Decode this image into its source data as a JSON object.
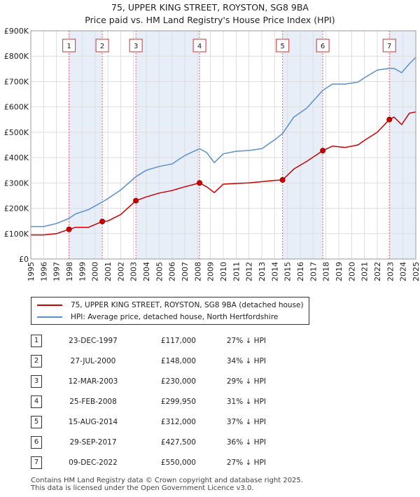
{
  "title": "75, UPPER KING STREET, ROYSTON, SG8 9BA",
  "subtitle": "Price paid vs. HM Land Registry's House Price Index (HPI)",
  "legend": [
    {
      "label": "75, UPPER KING STREET, ROYSTON, SG8 9BA (detached house)",
      "color": "#cc0000"
    },
    {
      "label": "HPI: Average price, detached house, North Hertfordshire",
      "color": "#5b8fd0"
    }
  ],
  "sales": [
    {
      "num": "1",
      "date": "23-DEC-1997",
      "price": "£117,000",
      "hpi": "27% ↓ HPI"
    },
    {
      "num": "2",
      "date": "27-JUL-2000",
      "price": "£148,000",
      "hpi": "34% ↓ HPI"
    },
    {
      "num": "3",
      "date": "12-MAR-2003",
      "price": "£230,000",
      "hpi": "29% ↓ HPI"
    },
    {
      "num": "4",
      "date": "25-FEB-2008",
      "price": "£299,950",
      "hpi": "31% ↓ HPI"
    },
    {
      "num": "5",
      "date": "15-AUG-2014",
      "price": "£312,000",
      "hpi": "37% ↓ HPI"
    },
    {
      "num": "6",
      "date": "29-SEP-2017",
      "price": "£427,500",
      "hpi": "36% ↓ HPI"
    },
    {
      "num": "7",
      "date": "09-DEC-2022",
      "price": "£550,000",
      "hpi": "27% ↓ HPI"
    }
  ],
  "footer": {
    "line1": "Contains HM Land Registry data © Crown copyright and database right 2025.",
    "line2": "This data is licensed under the Open Government Licence v3.0."
  },
  "chart_data": {
    "type": "line",
    "xlim": [
      1995,
      2025
    ],
    "ylim": [
      0,
      900000
    ],
    "y_ticks": [
      {
        "value": 0,
        "label": "£0"
      },
      {
        "value": 100000,
        "label": "£100K"
      },
      {
        "value": 200000,
        "label": "£200K"
      },
      {
        "value": 300000,
        "label": "£300K"
      },
      {
        "value": 400000,
        "label": "£400K"
      },
      {
        "value": 500000,
        "label": "£500K"
      },
      {
        "value": 600000,
        "label": "£600K"
      },
      {
        "value": 700000,
        "label": "£700K"
      },
      {
        "value": 800000,
        "label": "£800K"
      },
      {
        "value": 900000,
        "label": "£900K"
      }
    ],
    "x_ticks": [
      "1995",
      "1996",
      "1997",
      "1998",
      "1999",
      "2000",
      "2001",
      "2002",
      "2003",
      "2004",
      "2005",
      "2006",
      "2007",
      "2008",
      "2009",
      "2010",
      "2011",
      "2012",
      "2013",
      "2014",
      "2015",
      "2016",
      "2017",
      "2018",
      "2019",
      "2020",
      "2021",
      "2022",
      "2023",
      "2024",
      "2025"
    ],
    "grid": true,
    "shaded_regions": [
      [
        1997.98,
        2000.57
      ],
      [
        2003.19,
        2008.15
      ],
      [
        2014.62,
        2017.75
      ],
      [
        2022.94,
        2025
      ]
    ],
    "series": [
      {
        "name": "75, UPPER KING STREET, ROYSTON, SG8 9BA (detached house)",
        "color": "#cc0000",
        "x": [
          1995.0,
          1996.0,
          1997.0,
          1997.98,
          1998.5,
          1999.5,
          2000.57,
          2001.0,
          2002.0,
          2003.19,
          2004.0,
          2005.0,
          2006.0,
          2007.0,
          2008.15,
          2008.7,
          2009.3,
          2010.0,
          2011.0,
          2012.0,
          2013.0,
          2014.0,
          2014.62,
          2015.5,
          2016.5,
          2017.75,
          2018.5,
          2019.5,
          2020.5,
          2021.0,
          2022.0,
          2022.94,
          2023.3,
          2023.9,
          2024.5,
          2025.0
        ],
        "y": [
          95000,
          95000,
          100000,
          117000,
          125000,
          125000,
          148000,
          150000,
          175000,
          230000,
          245000,
          260000,
          270000,
          285000,
          299950,
          285000,
          262000,
          295000,
          298000,
          300000,
          305000,
          310000,
          312000,
          355000,
          385000,
          427500,
          445000,
          440000,
          450000,
          468000,
          500000,
          550000,
          560000,
          530000,
          575000,
          580000
        ]
      },
      {
        "name": "HPI: Average price, detached house, North Hertfordshire",
        "color": "#5b8fd0",
        "x": [
          1995.0,
          1996.0,
          1997.0,
          1997.98,
          1998.5,
          1999.5,
          2000.57,
          2001.0,
          2002.0,
          2003.19,
          2004.0,
          2005.0,
          2006.0,
          2007.0,
          2008.15,
          2008.7,
          2009.3,
          2010.0,
          2011.0,
          2012.0,
          2013.0,
          2014.0,
          2014.62,
          2015.5,
          2016.5,
          2017.75,
          2018.5,
          2019.5,
          2020.5,
          2021.0,
          2022.0,
          2022.94,
          2023.3,
          2023.9,
          2024.5,
          2025.0
        ],
        "y": [
          128000,
          128000,
          140000,
          160000,
          178000,
          195000,
          225000,
          238000,
          272000,
          325000,
          350000,
          365000,
          375000,
          408000,
          435000,
          420000,
          380000,
          415000,
          425000,
          428000,
          435000,
          470000,
          495000,
          560000,
          595000,
          665000,
          690000,
          690000,
          698000,
          715000,
          745000,
          752000,
          752000,
          735000,
          770000,
          795000
        ]
      }
    ],
    "markers": [
      {
        "label": "1",
        "x": 1997.98,
        "y": 117000
      },
      {
        "label": "2",
        "x": 2000.57,
        "y": 148000
      },
      {
        "label": "3",
        "x": 2003.19,
        "y": 230000
      },
      {
        "label": "4",
        "x": 2008.15,
        "y": 299950
      },
      {
        "label": "5",
        "x": 2014.62,
        "y": 312000
      },
      {
        "label": "6",
        "x": 2017.75,
        "y": 427500
      },
      {
        "label": "7",
        "x": 2022.94,
        "y": 550000
      }
    ]
  }
}
